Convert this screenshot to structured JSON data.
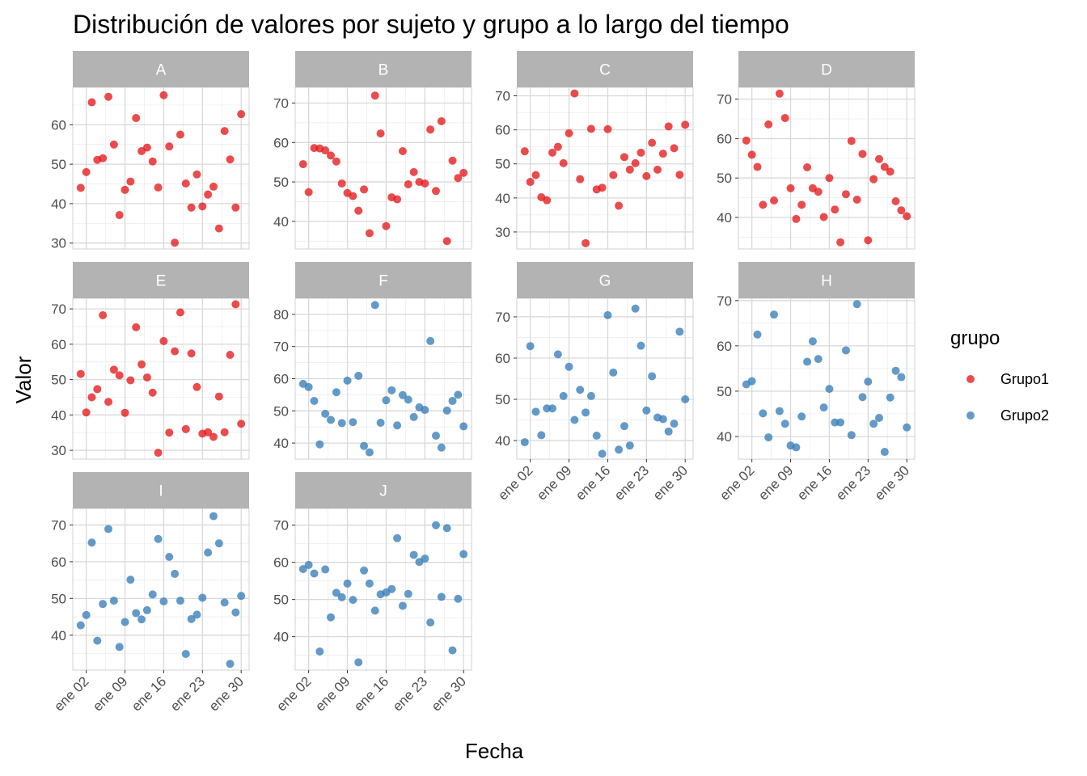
{
  "chart_data": {
    "type": "scatter",
    "title": "Distribución de valores por sujeto y grupo a lo largo del tiempo",
    "xlabel": "Fecha",
    "ylabel": "Valor",
    "x_dates": [
      "ene 01",
      "ene 02",
      "ene 03",
      "ene 04",
      "ene 05",
      "ene 06",
      "ene 07",
      "ene 08",
      "ene 09",
      "ene 10",
      "ene 11",
      "ene 12",
      "ene 13",
      "ene 14",
      "ene 15",
      "ene 16",
      "ene 17",
      "ene 18",
      "ene 19",
      "ene 20",
      "ene 21",
      "ene 22",
      "ene 23",
      "ene 24",
      "ene 25",
      "ene 26",
      "ene 27",
      "ene 28",
      "ene 29",
      "ene 30"
    ],
    "x_tick_labels": [
      "ene 02",
      "ene 09",
      "ene 16",
      "ene 23",
      "ene 30"
    ],
    "grid": true,
    "legend": {
      "title": "grupo",
      "position": "right",
      "entries": [
        {
          "name": "Grupo1",
          "color": "#E41A1C"
        },
        {
          "name": "Grupo2",
          "color": "#377EB8"
        }
      ]
    },
    "panels": [
      {
        "label": "A",
        "group": "Grupo1",
        "ylim": [
          28.5,
          69.5
        ],
        "yticks": [
          30,
          40,
          50,
          60
        ],
        "values": [
          44,
          48,
          65.7,
          51.1,
          51.5,
          67.1,
          55,
          37.1,
          43.5,
          45.6,
          61.7,
          53.3,
          54.2,
          50.7,
          44.1,
          67.5,
          54.5,
          30.1,
          57.5,
          45.1,
          39,
          47.4,
          39.3,
          42.3,
          44.3,
          33.7,
          58.4,
          51.2,
          39,
          62.7
        ]
      },
      {
        "label": "B",
        "group": "Grupo1",
        "ylim": [
          33,
          74
        ],
        "yticks": [
          40,
          50,
          60,
          70
        ],
        "values": [
          54.5,
          47.4,
          58.6,
          58.5,
          58,
          56.7,
          55.2,
          49.6,
          47.2,
          46.4,
          42.7,
          48.1,
          37,
          71.9,
          62.3,
          38.8,
          46.1,
          45.6,
          57.8,
          49.4,
          52.5,
          50,
          49.6,
          63.3,
          47.7,
          65.4,
          35,
          55.4,
          51,
          52.3
        ]
      },
      {
        "label": "C",
        "group": "Grupo1",
        "ylim": [
          25,
          72.5
        ],
        "yticks": [
          30,
          40,
          50,
          60,
          70
        ],
        "values": [
          53.7,
          44.7,
          46.7,
          40.2,
          39.3,
          53.3,
          55,
          50.2,
          59,
          70.7,
          45.5,
          26.7,
          60.3,
          42.5,
          43,
          60.2,
          46.7,
          37.7,
          52,
          48.3,
          50.2,
          53.3,
          46.4,
          56.2,
          48.3,
          53,
          61,
          54.6,
          46.8,
          61.5
        ]
      },
      {
        "label": "D",
        "group": "Grupo1",
        "ylim": [
          32,
          73
        ],
        "yticks": [
          40,
          50,
          60,
          70
        ],
        "values": [
          59.5,
          55.9,
          52.8,
          43.2,
          63.6,
          44.3,
          71.4,
          65.2,
          47.4,
          39.6,
          43.2,
          52.7,
          47.4,
          46.5,
          40.1,
          50,
          42,
          33.7,
          45.9,
          59.4,
          44.5,
          56.1,
          34.2,
          49.7,
          54.8,
          52.8,
          51.6,
          44.1,
          41.8,
          40.3
        ]
      },
      {
        "label": "E",
        "group": "Grupo1",
        "ylim": [
          27.5,
          73
        ],
        "yticks": [
          30,
          40,
          50,
          60,
          70
        ],
        "values": [
          51.6,
          40.7,
          45,
          47.3,
          68.2,
          43.7,
          52.8,
          51.2,
          40.6,
          49.8,
          64.8,
          54.3,
          50.6,
          46.3,
          29.3,
          60.9,
          35,
          58,
          69,
          36,
          57.4,
          47.9,
          34.7,
          35.1,
          33.8,
          45.2,
          35.1,
          57,
          71.3,
          37.5
        ]
      },
      {
        "label": "F",
        "group": "Grupo2",
        "ylim": [
          35,
          85
        ],
        "yticks": [
          40,
          50,
          60,
          70,
          80
        ],
        "values": [
          58.4,
          57.4,
          53.1,
          39.6,
          49.1,
          47.2,
          55.8,
          46.2,
          59.4,
          46.5,
          60.9,
          39.1,
          37.1,
          82.9,
          46.3,
          53.3,
          56.4,
          45.5,
          54.9,
          53.5,
          48.1,
          51.1,
          50.3,
          71.7,
          42.3,
          38.6,
          50.1,
          53.1,
          55,
          45.2
        ]
      },
      {
        "label": "G",
        "group": "Grupo2",
        "ylim": [
          35.5,
          74.5
        ],
        "yticks": [
          40,
          50,
          60,
          70
        ],
        "values": [
          39.6,
          62.9,
          47,
          41.3,
          47.8,
          47.8,
          60.9,
          50.8,
          57.9,
          45,
          52.3,
          46.8,
          50.8,
          41.2,
          36.8,
          70.4,
          56.5,
          37.8,
          43.5,
          38.8,
          72,
          63,
          47.3,
          55.6,
          45.6,
          45.2,
          42.2,
          44.1,
          66.4,
          50
        ]
      },
      {
        "label": "H",
        "group": "Grupo2",
        "ylim": [
          35,
          70.5
        ],
        "yticks": [
          40,
          50,
          60,
          70
        ],
        "values": [
          51.5,
          52.2,
          62.5,
          45.1,
          39.8,
          66.9,
          45.6,
          42.8,
          38,
          37.6,
          44.4,
          56.5,
          61,
          57.1,
          46.4,
          50.5,
          43.1,
          43.1,
          59,
          40.3,
          69.2,
          48.7,
          52.1,
          42.8,
          44.1,
          36.6,
          48.6,
          54.5,
          53.1,
          42
        ]
      },
      {
        "label": "I",
        "group": "Grupo2",
        "ylim": [
          30.5,
          74.5
        ],
        "yticks": [
          40,
          50,
          60,
          70
        ],
        "values": [
          42.7,
          45.5,
          65.2,
          38.5,
          48.5,
          68.9,
          49.4,
          36.8,
          43.6,
          55.1,
          46,
          44.3,
          46.8,
          51.1,
          66.2,
          49.2,
          61.3,
          56.7,
          49.4,
          34.9,
          44.4,
          45.6,
          50.2,
          62.5,
          72.4,
          65,
          48.9,
          32.2,
          46.2,
          50.7
        ]
      },
      {
        "label": "J",
        "group": "Grupo2",
        "ylim": [
          31,
          74.5
        ],
        "yticks": [
          40,
          50,
          60,
          70
        ],
        "values": [
          58.2,
          59.3,
          57,
          36,
          58.1,
          45.2,
          51.8,
          50.6,
          54.3,
          49.9,
          33.1,
          57.8,
          54.3,
          47,
          51.4,
          51.9,
          52.8,
          66.5,
          48.3,
          51.5,
          62,
          60.1,
          61,
          43.8,
          70,
          50.7,
          69.2,
          36.3,
          50.2,
          62.2
        ]
      }
    ]
  }
}
